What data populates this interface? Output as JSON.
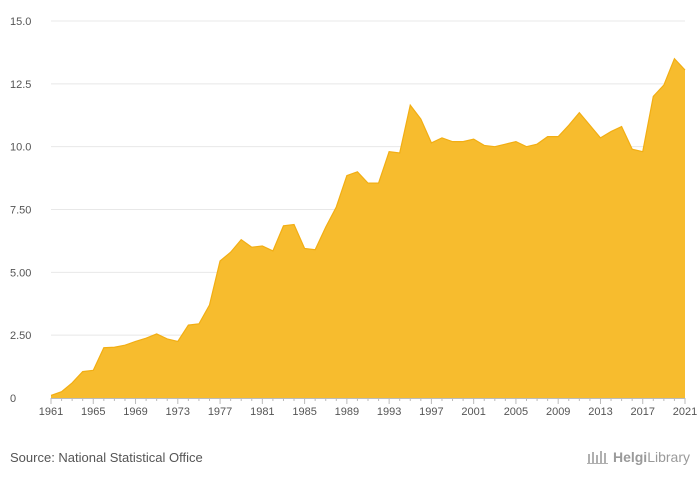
{
  "chart_data": {
    "type": "area",
    "title": "",
    "xlabel": "",
    "ylabel": "",
    "ylim": [
      0,
      15
    ],
    "xlim": [
      1961,
      2021
    ],
    "yticks": [
      0,
      2.5,
      5,
      7.5,
      10,
      12.5,
      15
    ],
    "ytick_labels": [
      "0",
      "2.50",
      "5.00",
      "7.50",
      "10.0",
      "12.5",
      "15.0"
    ],
    "xticks": [
      1961,
      1965,
      1969,
      1973,
      1977,
      1981,
      1985,
      1989,
      1993,
      1997,
      2001,
      2005,
      2009,
      2013,
      2017,
      2021
    ],
    "x": [
      1961,
      1962,
      1963,
      1964,
      1965,
      1966,
      1967,
      1968,
      1969,
      1970,
      1971,
      1972,
      1973,
      1974,
      1975,
      1976,
      1977,
      1978,
      1979,
      1980,
      1981,
      1982,
      1983,
      1984,
      1985,
      1986,
      1987,
      1988,
      1989,
      1990,
      1991,
      1992,
      1993,
      1994,
      1995,
      1996,
      1997,
      1998,
      1999,
      2000,
      2001,
      2002,
      2003,
      2004,
      2005,
      2006,
      2007,
      2008,
      2009,
      2010,
      2011,
      2012,
      2013,
      2014,
      2015,
      2016,
      2017,
      2018,
      2019,
      2020,
      2021
    ],
    "values": [
      0.1,
      0.25,
      0.6,
      1.05,
      1.1,
      2.0,
      2.02,
      2.1,
      2.25,
      2.38,
      2.55,
      2.35,
      2.25,
      2.9,
      2.95,
      3.7,
      5.45,
      5.8,
      6.3,
      6.0,
      6.05,
      5.85,
      6.85,
      6.9,
      5.95,
      5.9,
      6.8,
      7.6,
      8.85,
      9.0,
      8.55,
      8.55,
      9.8,
      9.75,
      11.65,
      11.1,
      10.15,
      10.35,
      10.2,
      10.2,
      10.3,
      10.05,
      10.0,
      10.1,
      10.2,
      10.0,
      10.1,
      10.4,
      10.4,
      10.85,
      11.35,
      10.85,
      10.35,
      10.6,
      10.8,
      9.9,
      9.8,
      12.0,
      12.45,
      13.5,
      13.05
    ],
    "colors": {
      "fill": "#f7bc2e",
      "stroke": "#f2ae13",
      "grid": "#e8e8e8",
      "axis": "#bbbbbb"
    }
  },
  "footer": {
    "source": "Source: National Statistical Office",
    "brand_prefix": "Helgi",
    "brand_suffix": "Library"
  }
}
